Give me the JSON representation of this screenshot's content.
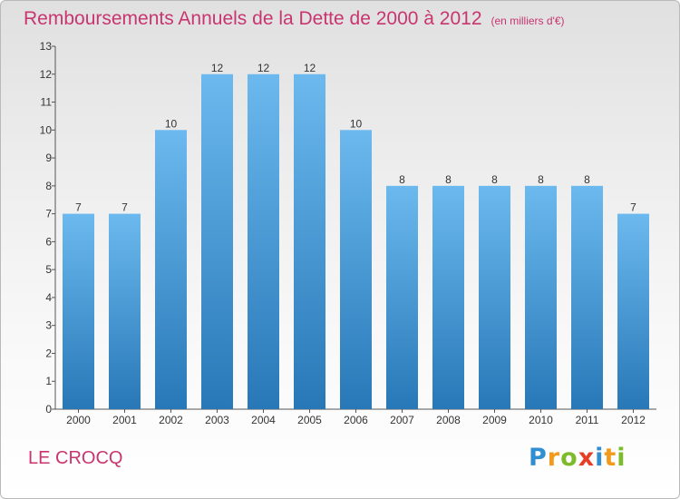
{
  "chart_data": {
    "type": "bar",
    "title": "Remboursements Annuels de la Dette de 2000 à 2012",
    "subtitle": "(en milliers d'€)",
    "xlabel": "",
    "ylabel": "",
    "categories": [
      "2000",
      "2001",
      "2002",
      "2003",
      "2004",
      "2005",
      "2006",
      "2007",
      "2008",
      "2009",
      "2010",
      "2011",
      "2012"
    ],
    "values": [
      7,
      7,
      10,
      12,
      12,
      12,
      10,
      8,
      8,
      8,
      8,
      8,
      7
    ],
    "ylim": [
      0,
      13
    ],
    "yticks": [
      0,
      1,
      2,
      3,
      4,
      5,
      6,
      7,
      8,
      9,
      10,
      11,
      12,
      13
    ],
    "grid": false,
    "legend": "none",
    "colors": {
      "bar_light": "#6bb9ee",
      "bar_dark": "#2878b8",
      "title": "#c8356f",
      "axis": "#555555"
    }
  },
  "commune": "LE CROCQ",
  "logo": {
    "letters": [
      {
        "char": "P",
        "color": "#2f8fd0"
      },
      {
        "char": "r",
        "color": "#f39a1c"
      },
      {
        "char": "o",
        "color": "#7dbb2a"
      },
      {
        "char": "x",
        "color": "#e63d25"
      },
      {
        "char": "i",
        "color": "#2f8fd0"
      },
      {
        "char": "t",
        "color": "#f39a1c"
      },
      {
        "char": "i",
        "color": "#7dbb2a"
      }
    ]
  }
}
